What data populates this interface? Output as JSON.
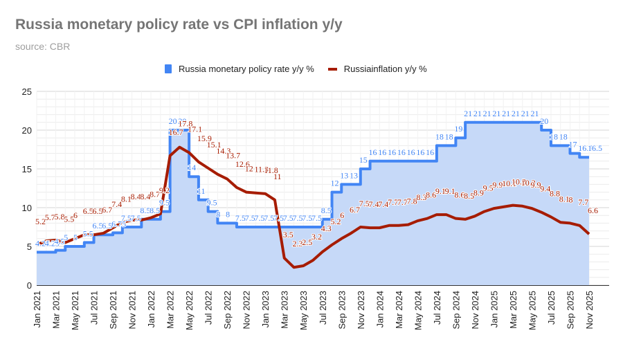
{
  "header": {
    "title": "Russia monetary policy rate vs CPI inflation y/y",
    "subtitle": "source: CBR"
  },
  "legend": {
    "items": [
      {
        "label": "Russia monetary policy rate y/y %",
        "color": "#4285f4"
      },
      {
        "label": "Russiainflation y/y %",
        "color": "#a61c00"
      }
    ]
  },
  "chart_data": {
    "type": "line",
    "title": "Russia monetary policy rate vs CPI inflation y/y",
    "subtitle": "source: CBR",
    "xlabel": "",
    "ylabel": "",
    "ylim": [
      0,
      25
    ],
    "yticks": [
      0,
      5,
      10,
      15,
      20,
      25
    ],
    "grid": true,
    "legend_position": "top",
    "x": [
      "Jan 2021",
      "Feb 2021",
      "Mar 2021",
      "Apr 2021",
      "May 2021",
      "Jun 2021",
      "Jul 2021",
      "Aug 2021",
      "Sep 2021",
      "Oct 2021",
      "Nov 2021",
      "Dec 2021",
      "Jan 2022",
      "Feb 2022",
      "Mar 2022",
      "Apr 2022",
      "May 2022",
      "Jun 2022",
      "Jul 2022",
      "Aug 2022",
      "Sep 2022",
      "Oct 2022",
      "Nov 2022",
      "Dec 2022",
      "Jan 2023",
      "Feb 2023",
      "Mar 2023",
      "Apr 2023",
      "May 2023",
      "Jun 2023",
      "Jul 2023",
      "Aug 2023",
      "Sep 2023",
      "Oct 2023",
      "Nov 2023",
      "Dec 2023",
      "Jan 2024",
      "Feb 2024",
      "Mar 2024",
      "Apr 2024",
      "May 2024",
      "Jun 2024",
      "Jul 2024",
      "Aug 2024",
      "Sep 2024",
      "Oct 2024",
      "Nov 2024",
      "Dec 2024",
      "Jan 2025",
      "Feb 2025",
      "Mar 2025",
      "Apr 2025",
      "May 2025",
      "Jun 2025",
      "Jul 2025",
      "Aug 2025",
      "Sep 2025",
      "Oct 2025",
      "Nov 2025"
    ],
    "xtick_labels": [
      "Jan 2021",
      "Mar 2021",
      "May 2021",
      "Jul 2021",
      "Sep 2021",
      "Nov 2021",
      "Jan 2022",
      "Mar 2022",
      "May 2022",
      "Jul 2022",
      "Sep 2022",
      "Nov 2022",
      "Jan 2023",
      "Mar 2023",
      "May 2023",
      "Jul 2023",
      "Sep 2023",
      "Nov 2023",
      "Jan 2024",
      "Mar 2024",
      "May 2024",
      "Jul 2024",
      "Sep 2024",
      "Nov 2024",
      "Jan 2025",
      "Mar 2025",
      "May 2025",
      "Jul 2025",
      "Sep 2025",
      "Nov 2025"
    ],
    "series": [
      {
        "name": "Russia monetary policy rate y/y %",
        "style": "stepped-area",
        "color": "#4285f4",
        "values": [
          4.25,
          4.25,
          4.5,
          5,
          5,
          5.5,
          6.5,
          6.5,
          6.75,
          7.5,
          7.5,
          8.5,
          8.5,
          9.5,
          20,
          20,
          14,
          11,
          9.5,
          8,
          8,
          7.5,
          7.5,
          7.5,
          7.5,
          7.5,
          7.5,
          7.5,
          7.5,
          7.5,
          8.5,
          12,
          13,
          13,
          15,
          16,
          16,
          16,
          16,
          16,
          16,
          16,
          18,
          18,
          19,
          21,
          21,
          21,
          21,
          21,
          21,
          21,
          21,
          20,
          18,
          18,
          17,
          16.5,
          16.5
        ]
      },
      {
        "name": "Russiainflation y/y %",
        "style": "line",
        "color": "#a61c00",
        "values": [
          5.2,
          5.7,
          5.8,
          5.5,
          6.0,
          6.5,
          6.5,
          6.7,
          7.4,
          8.1,
          8.4,
          8.4,
          8.7,
          9.2,
          16.7,
          17.8,
          17.1,
          15.9,
          15.1,
          14.3,
          13.7,
          12.6,
          12.0,
          11.9,
          11.8,
          11.0,
          3.5,
          2.3,
          2.5,
          3.2,
          4.3,
          5.2,
          6.0,
          6.7,
          7.5,
          7.4,
          7.4,
          7.7,
          7.7,
          7.8,
          8.3,
          8.6,
          9.1,
          9.1,
          8.6,
          8.5,
          8.9,
          9.5,
          9.9,
          10.1,
          10.3,
          10.2,
          9.9,
          9.4,
          8.8,
          8.1,
          8.0,
          7.7,
          6.6
        ]
      }
    ]
  }
}
